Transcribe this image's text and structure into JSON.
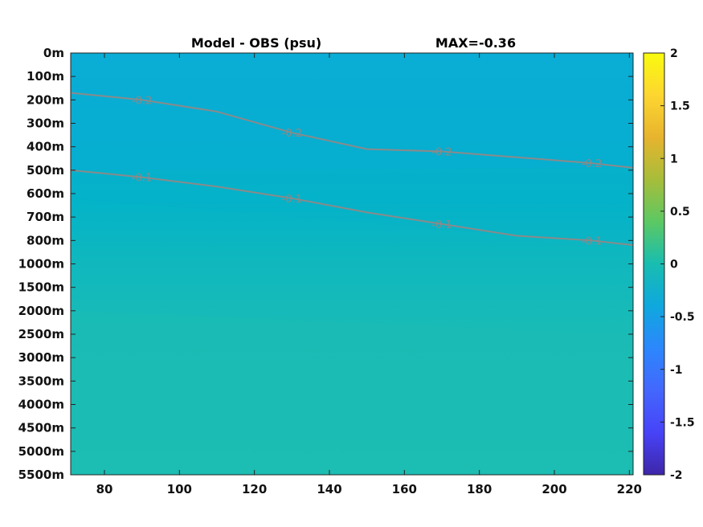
{
  "chart_data": {
    "type": "heatmap",
    "title": "Model - OBS (psu)",
    "subtitle": "MAX=-0.36",
    "x_ticks": [
      80,
      100,
      120,
      140,
      160,
      180,
      200,
      220
    ],
    "xlim": [
      71,
      221
    ],
    "y_ticks": [
      "0m",
      "100m",
      "200m",
      "300m",
      "400m",
      "500m",
      "600m",
      "700m",
      "800m",
      "1000m",
      "1500m",
      "2000m",
      "2500m",
      "3000m",
      "3500m",
      "4000m",
      "4500m",
      "5000m",
      "5500m"
    ],
    "colorbar": {
      "ticks": [
        2,
        1.5,
        1,
        0.5,
        0,
        -0.5,
        -1,
        -1.5,
        -2
      ],
      "range": [
        -2,
        2
      ],
      "colormap": "parula",
      "colors": [
        "#3e26a8",
        "#4743f8",
        "#2c87fc",
        "#1eacd8",
        "#2dc09b",
        "#7fcb5b",
        "#d9ba2f",
        "#fdd630",
        "#f9fb0e"
      ]
    },
    "contours": [
      {
        "level": "-0.2",
        "x": [
          71,
          90,
          110,
          130,
          150,
          170,
          190,
          210,
          221
        ],
        "y_level": [
          1.7,
          2.0,
          2.5,
          3.4,
          4.1,
          4.2,
          4.45,
          4.7,
          4.9
        ]
      },
      {
        "level": "-0.1",
        "x": [
          71,
          90,
          110,
          130,
          150,
          170,
          190,
          210,
          221
        ],
        "y_level": [
          5.0,
          5.3,
          5.7,
          6.2,
          6.8,
          7.3,
          7.8,
          8.0,
          8.2
        ]
      }
    ],
    "contour_labels": [
      "-0.2",
      "-0.1"
    ],
    "field": [
      {
        "y_level": 0,
        "left": -0.2,
        "right": -0.15
      },
      {
        "y_level": 3,
        "left": -0.2,
        "right": -0.2
      },
      {
        "y_level": 5,
        "left": -0.1,
        "right": -0.2
      },
      {
        "y_level": 8,
        "left": 0.0,
        "right": -0.1
      },
      {
        "y_level": 11,
        "left": 0.05,
        "right": 0.0
      },
      {
        "y_level": 18,
        "left": 0.1,
        "right": 0.1
      }
    ]
  }
}
